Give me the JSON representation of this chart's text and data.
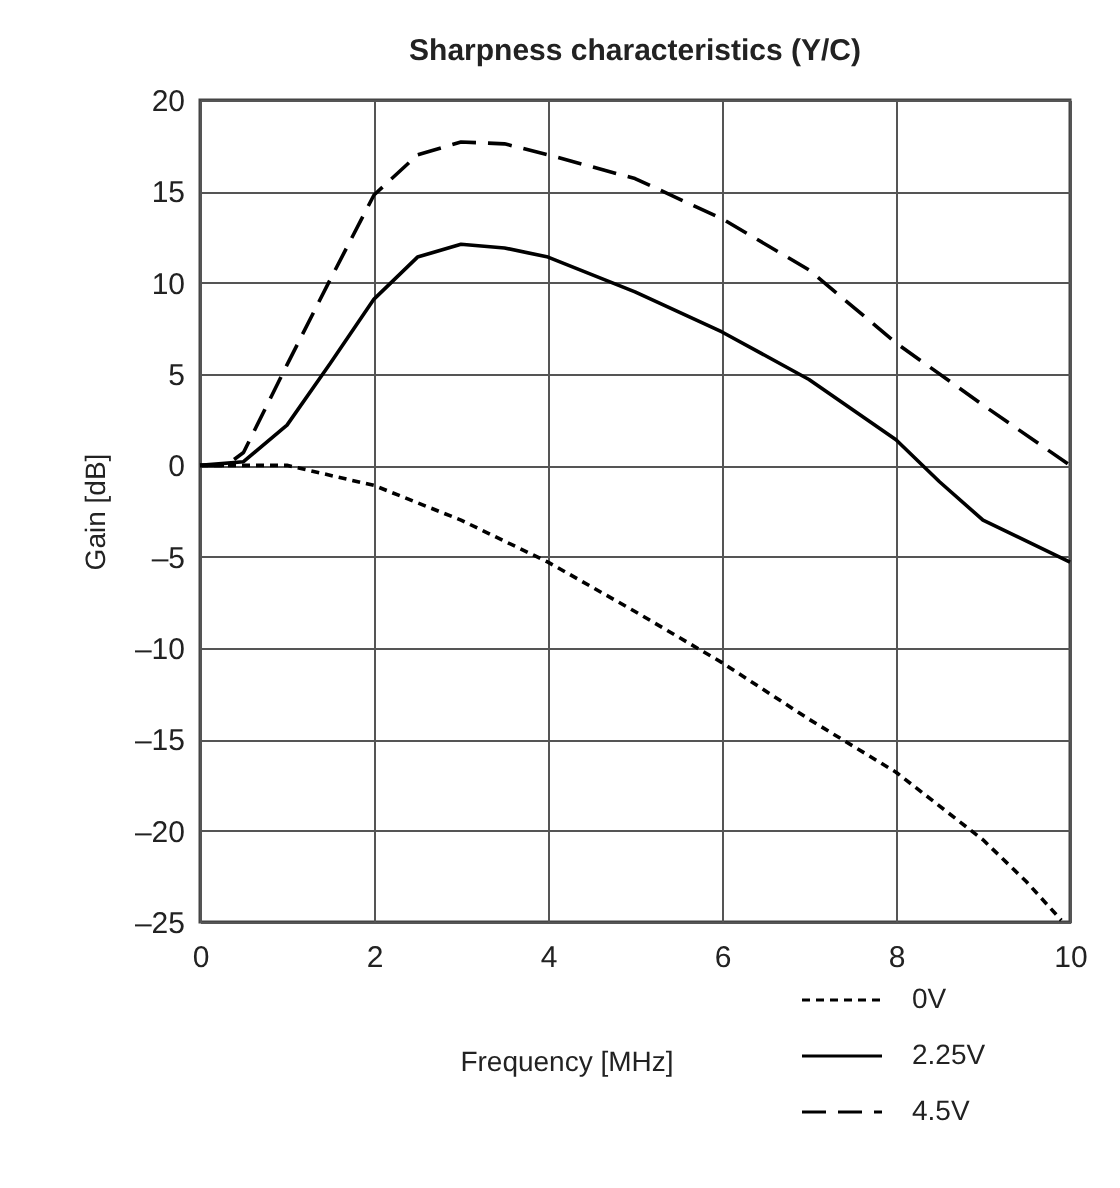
{
  "chart_data": {
    "type": "line",
    "title": "Sharpness characteristics (Y/C)",
    "xlabel": "Frequency [MHz]",
    "ylabel": "Gain [dB]",
    "xlim": [
      0,
      10
    ],
    "xticks": [
      0,
      2,
      4,
      6,
      8,
      10
    ],
    "ylim": [
      -25,
      20
    ],
    "yticks": [
      {
        "value": -25,
        "label": "–25"
      },
      {
        "value": -20,
        "label": "–20"
      },
      {
        "value": -15,
        "label": "–15"
      },
      {
        "value": -10,
        "label": "–10"
      },
      {
        "value": -5,
        "label": "–5"
      },
      0,
      5,
      10,
      15,
      20
    ],
    "grid": true,
    "legend": "bottom right",
    "marker": "none",
    "series": [
      {
        "name": "0V",
        "color": "#000000",
        "line_style": "dotted",
        "x": [
          0,
          0.5,
          1,
          2,
          3,
          4,
          5,
          6,
          7,
          8,
          9,
          9.5,
          9.9
        ],
        "values": [
          0,
          0,
          0,
          -1.1,
          -3,
          -5.3,
          -8,
          -10.8,
          -13.9,
          -16.8,
          -20.5,
          -22.8,
          -24.9
        ]
      },
      {
        "name": "2.25V",
        "color": "#000000",
        "line_style": "solid",
        "x": [
          0,
          0.5,
          1,
          1.5,
          2,
          2.5,
          3,
          3.5,
          4,
          5,
          6,
          7,
          8,
          8.5,
          9,
          10
        ],
        "values": [
          0,
          0.2,
          2.2,
          5.6,
          9.1,
          11.4,
          12.1,
          11.9,
          11.4,
          9.5,
          7.3,
          4.7,
          1.4,
          -0.9,
          -3,
          -5.3
        ]
      },
      {
        "name": "4.5V",
        "color": "#000000",
        "line_style": "dashed",
        "x": [
          0,
          0.3,
          0.5,
          1,
          1.5,
          2,
          2.5,
          3,
          3.5,
          4,
          5,
          6,
          7,
          8,
          9,
          10
        ],
        "values": [
          0,
          0,
          0.7,
          5.5,
          10.2,
          14.8,
          17,
          17.7,
          17.6,
          17,
          15.7,
          13.5,
          10.7,
          6.7,
          3.3,
          0
        ]
      }
    ]
  }
}
